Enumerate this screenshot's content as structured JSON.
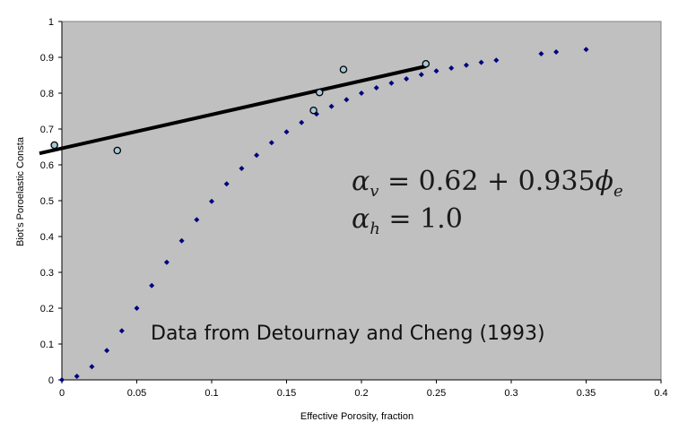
{
  "chart_data": {
    "type": "scatter",
    "title": "",
    "xlabel": "Effective Porosity, fraction",
    "ylabel": "Biot's Poroelastic Consta",
    "xlim": [
      0,
      0.4
    ],
    "ylim": [
      0,
      1
    ],
    "x_ticks": [
      "0",
      "0.05",
      "0.1",
      "0.15",
      "0.2",
      "0.25",
      "0.3",
      "0.35",
      "0.4"
    ],
    "y_ticks": [
      "0",
      "0.1",
      "0.2",
      "0.3",
      "0.4",
      "0.5",
      "0.6",
      "0.7",
      "0.8",
      "0.9",
      "1"
    ],
    "grid": false,
    "plot_background": "#c0c0c0",
    "series": [
      {
        "marker": "diamond",
        "color": "#000080",
        "points": [
          [
            0.0,
            0.0
          ],
          [
            0.01,
            0.01
          ],
          [
            0.02,
            0.037
          ],
          [
            0.03,
            0.082
          ],
          [
            0.04,
            0.137
          ],
          [
            0.05,
            0.2
          ],
          [
            0.06,
            0.263
          ],
          [
            0.07,
            0.328
          ],
          [
            0.08,
            0.388
          ],
          [
            0.09,
            0.447
          ],
          [
            0.1,
            0.498
          ],
          [
            0.11,
            0.547
          ],
          [
            0.12,
            0.59
          ],
          [
            0.13,
            0.627
          ],
          [
            0.14,
            0.662
          ],
          [
            0.15,
            0.692
          ],
          [
            0.16,
            0.718
          ],
          [
            0.17,
            0.742
          ],
          [
            0.18,
            0.763
          ],
          [
            0.19,
            0.782
          ],
          [
            0.2,
            0.8
          ],
          [
            0.21,
            0.815
          ],
          [
            0.22,
            0.828
          ],
          [
            0.23,
            0.84
          ],
          [
            0.24,
            0.852
          ],
          [
            0.25,
            0.862
          ],
          [
            0.26,
            0.87
          ],
          [
            0.27,
            0.878
          ],
          [
            0.28,
            0.886
          ],
          [
            0.29,
            0.892
          ],
          [
            0.32,
            0.91
          ],
          [
            0.33,
            0.915
          ],
          [
            0.35,
            0.922
          ]
        ]
      },
      {
        "marker": "circle",
        "color": "#a6c8d8",
        "stroke": "#000000",
        "points": [
          [
            -0.005,
            0.655
          ],
          [
            0.037,
            0.64
          ],
          [
            0.168,
            0.752
          ],
          [
            0.172,
            0.802
          ],
          [
            0.188,
            0.866
          ],
          [
            0.243,
            0.882
          ]
        ]
      }
    ],
    "fit_line": {
      "color": "#000000",
      "from": [
        -0.015,
        0.632
      ],
      "to": [
        0.243,
        0.875
      ]
    },
    "annotations": {
      "eq_vertical": {
        "lhs": "α",
        "sub": "v",
        "rhs": " = 0.62 + 0.935",
        "phi": "ϕ",
        "phi_sub": "e"
      },
      "eq_horizontal": {
        "lhs": "α",
        "sub": "h",
        "rhs": " = 1.0"
      },
      "source": "Data from Detournay and Cheng (1993)"
    }
  }
}
